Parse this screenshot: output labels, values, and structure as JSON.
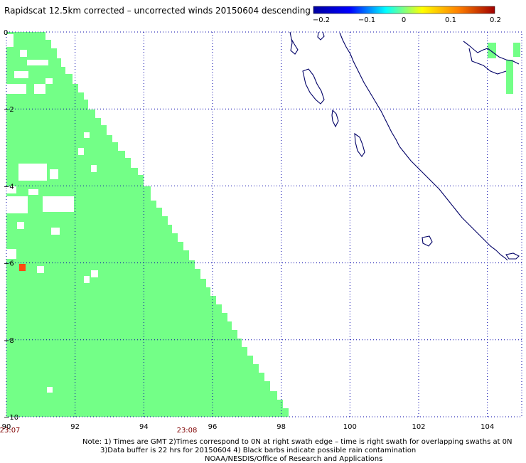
{
  "title": "Rapidscat 12.5km corrected – uncorrected winds 20150604 descending",
  "colorbar": {
    "ticks": [
      "−0.2",
      "−0.1",
      "0",
      "0.1",
      "0.2"
    ],
    "stops": [
      "#0000a0",
      "#0000ff",
      "#00ffff",
      "#ffff00",
      "#ff7f00",
      "#a00000"
    ]
  },
  "axes": {
    "x_ticks": [
      "90",
      "92",
      "94",
      "96",
      "98",
      "100",
      "102",
      "104"
    ],
    "y_ticks": [
      "0",
      "−2",
      "−4",
      "−6",
      "−8",
      "−10"
    ],
    "x_range": [
      90,
      105
    ],
    "y_range": [
      0,
      -10
    ]
  },
  "times": {
    "left": "23:07",
    "middle": "23:08"
  },
  "colors": {
    "wind": "#73ff87",
    "hotspot": "#ff4a10",
    "coast": "#000066",
    "grid": "#0000aa",
    "time": "#800000"
  },
  "notes": {
    "line1": "Note: 1) Times are GMT 2)Times correspond to 0N at right swath edge – time is right swath for overlapping swaths at 0N",
    "line2": "3)Data buffer is 22 hrs for 20150604 4) Black barbs indicate possible rain contamination",
    "line3": "NOAA/NESDIS/Office of Research and Applications"
  }
}
